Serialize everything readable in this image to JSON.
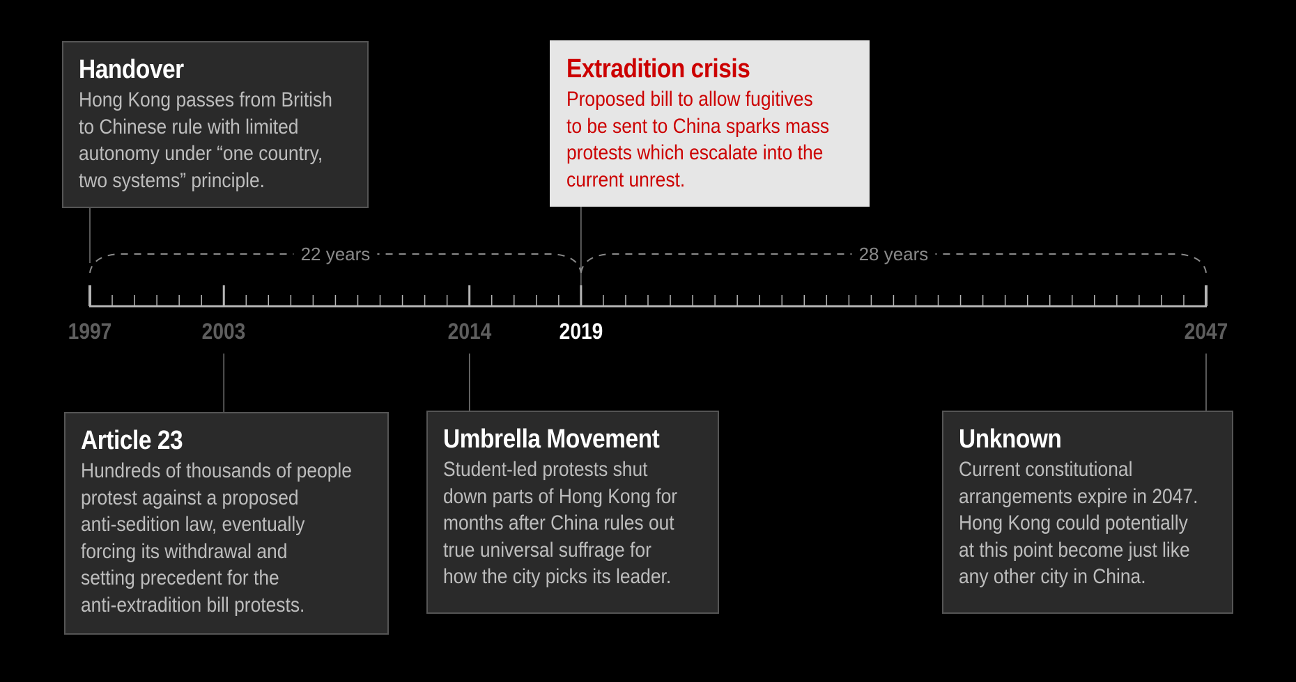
{
  "timeline": {
    "start_year": 1997,
    "end_year": 2047,
    "spans": [
      {
        "label": "22 years",
        "from": 1997,
        "to": 2019
      },
      {
        "label": "28 years",
        "from": 2019,
        "to": 2047
      }
    ],
    "years": [
      {
        "year": 1997,
        "label": "1997",
        "current": false
      },
      {
        "year": 2003,
        "label": "2003",
        "current": false
      },
      {
        "year": 2014,
        "label": "2014",
        "current": false
      },
      {
        "year": 2019,
        "label": "2019",
        "current": true
      },
      {
        "year": 2047,
        "label": "2047",
        "current": false
      }
    ]
  },
  "events": {
    "handover": {
      "year": 1997,
      "title": "Handover",
      "lines": [
        "Hong Kong passes from British",
        "to Chinese rule with limited",
        "autonomy under “one country,",
        "two systems” principle."
      ]
    },
    "extradition": {
      "year": 2019,
      "title": "Extradition crisis",
      "lines": [
        "Proposed bill to allow fugitives",
        "to be sent to China sparks mass",
        "protests which escalate into the",
        "current unrest."
      ]
    },
    "article23": {
      "year": 2003,
      "title": "Article 23",
      "lines": [
        "Hundreds of thousands of people",
        "protest against a proposed",
        "anti-sedition law, eventually",
        "forcing its withdrawal and",
        "setting precedent for the",
        "anti-extradition bill protests."
      ]
    },
    "umbrella": {
      "year": 2014,
      "title": "Umbrella Movement",
      "lines": [
        "Student-led protests shut",
        "down parts of Hong Kong for",
        "months after China rules out",
        "true universal suffrage for",
        "how the city picks its leader."
      ]
    },
    "unknown": {
      "year": 2047,
      "title": "Unknown",
      "lines": [
        "Current constitutional",
        "arrangements expire in 2047.",
        "Hong Kong could potentially",
        "at this point become just like",
        "any other city in China."
      ]
    }
  },
  "colors": {
    "background": "#000000",
    "card": "#2a2a2a",
    "card_border": "#555555",
    "highlight_card": "#e6e6e6",
    "highlight_text": "#cc0000",
    "axis": "#b5b5b5",
    "year_muted": "#5e5e5e",
    "year_current": "#ffffff"
  }
}
